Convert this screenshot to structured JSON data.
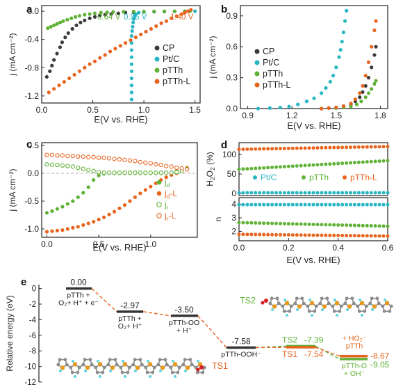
{
  "chart_data": [
    {
      "panel": "a",
      "type": "scatter",
      "xlabel": "E(V vs. RHE)",
      "ylabel": "j (mA cm⁻²)",
      "xlim": [
        0,
        1.55
      ],
      "ylim": [
        -1.3,
        0.08
      ],
      "xticks": [
        "0.0",
        "0.5",
        "1.0",
        "1.5"
      ],
      "yticks": [
        "0.0",
        "-0.4",
        "-0.8",
        "-1.2"
      ],
      "legend_position": "right",
      "annotations": [
        {
          "text": "0.64 V",
          "color": "#5fb236"
        },
        {
          "text": "0.96 V",
          "color": "#27b6c2"
        },
        {
          "text": "1.40 V",
          "color": "#e8641e"
        }
      ],
      "series": [
        {
          "name": "CP",
          "color": "#3a3a3a",
          "x": [
            0.05,
            0.08,
            0.1,
            0.12,
            0.15,
            0.18,
            0.2,
            0.23,
            0.26,
            0.3,
            0.34,
            0.38,
            0.42,
            0.47,
            0.52,
            0.57,
            0.62,
            0.68,
            0.75,
            0.82,
            0.9,
            1.0,
            1.1,
            1.2,
            1.3,
            1.4,
            1.45
          ],
          "y": [
            -0.93,
            -0.85,
            -0.77,
            -0.69,
            -0.6,
            -0.51,
            -0.44,
            -0.37,
            -0.31,
            -0.25,
            -0.2,
            -0.16,
            -0.13,
            -0.1,
            -0.08,
            -0.06,
            -0.05,
            -0.04,
            -0.03,
            -0.02,
            -0.015,
            -0.01,
            -0.007,
            -0.005,
            -0.003,
            -0.002,
            -0.001
          ]
        },
        {
          "name": "Pt/C",
          "color": "#27b6c2",
          "x": [
            0.88,
            0.88,
            0.88,
            0.88,
            0.88,
            0.88,
            0.88,
            0.88,
            0.88,
            0.88,
            0.885,
            0.89,
            0.895,
            0.9,
            0.91,
            0.92,
            0.95,
            1.0,
            1.1,
            1.2,
            1.3,
            1.4,
            1.5
          ],
          "y": [
            -1.25,
            -1.15,
            -1.05,
            -0.95,
            -0.85,
            -0.75,
            -0.65,
            -0.55,
            -0.45,
            -0.35,
            -0.28,
            -0.22,
            -0.16,
            -0.11,
            -0.07,
            -0.04,
            -0.02,
            -0.01,
            -0.005,
            -0.003,
            -0.002,
            -0.001,
            0.0
          ]
        },
        {
          "name": "pTTh",
          "color": "#5fb236",
          "x": [
            0.06,
            0.09,
            0.12,
            0.15,
            0.18,
            0.21,
            0.25,
            0.29,
            0.33,
            0.37,
            0.42,
            0.47,
            0.52,
            0.58,
            0.64,
            0.7,
            0.8,
            0.9,
            1.0,
            1.1,
            1.2,
            1.3,
            1.4,
            1.45
          ],
          "y": [
            -0.24,
            -0.22,
            -0.2,
            -0.18,
            -0.16,
            -0.14,
            -0.12,
            -0.1,
            -0.08,
            -0.065,
            -0.05,
            -0.04,
            -0.03,
            -0.02,
            -0.015,
            -0.01,
            -0.007,
            -0.005,
            -0.003,
            -0.002,
            -0.001,
            0.0,
            0.0,
            0.0
          ]
        },
        {
          "name": "pTTh-L",
          "color": "#e8641e",
          "x": [
            0.07,
            0.12,
            0.17,
            0.22,
            0.27,
            0.32,
            0.37,
            0.42,
            0.47,
            0.52,
            0.57,
            0.62,
            0.67,
            0.72,
            0.77,
            0.82,
            0.87,
            0.92,
            0.97,
            1.02,
            1.07,
            1.12,
            1.17,
            1.22,
            1.27,
            1.32,
            1.37,
            1.4,
            1.43,
            1.46
          ],
          "y": [
            -1.15,
            -1.1,
            -1.05,
            -1.0,
            -0.95,
            -0.9,
            -0.85,
            -0.8,
            -0.75,
            -0.71,
            -0.66,
            -0.62,
            -0.57,
            -0.53,
            -0.49,
            -0.45,
            -0.41,
            -0.37,
            -0.33,
            -0.29,
            -0.25,
            -0.21,
            -0.17,
            -0.14,
            -0.1,
            -0.07,
            -0.04,
            -0.02,
            0.0,
            0.02
          ]
        }
      ]
    },
    {
      "panel": "b",
      "type": "scatter",
      "xlabel": "E(V vs. RHE)",
      "ylabel": "j (mA cm⁻²)",
      "xlim": [
        0.85,
        1.85
      ],
      "ylim": [
        0,
        1.0
      ],
      "xticks": [
        "0.9",
        "1.2",
        "1.5",
        "1.8"
      ],
      "yticks": [
        "0.0",
        "0.3",
        "0.6",
        "0.9"
      ],
      "legend_position": "left",
      "series": [
        {
          "name": "CP",
          "color": "#3a3a3a",
          "x": [
            1.4,
            1.45,
            1.5,
            1.55,
            1.6,
            1.63,
            1.66,
            1.68,
            1.7,
            1.72,
            1.74,
            1.76,
            1.77
          ],
          "y": [
            0.0,
            0.005,
            0.01,
            0.02,
            0.04,
            0.07,
            0.11,
            0.16,
            0.22,
            0.3,
            0.4,
            0.52,
            0.6
          ]
        },
        {
          "name": "Pt/C",
          "color": "#27b6c2",
          "x": [
            0.97,
            1.05,
            1.12,
            1.18,
            1.24,
            1.3,
            1.35,
            1.4,
            1.43,
            1.46,
            1.48,
            1.5,
            1.52,
            1.53,
            1.54,
            1.55,
            1.56,
            1.57
          ],
          "y": [
            0.0,
            0.005,
            0.01,
            0.02,
            0.04,
            0.07,
            0.1,
            0.15,
            0.2,
            0.26,
            0.32,
            0.4,
            0.5,
            0.57,
            0.65,
            0.74,
            0.85,
            0.95
          ]
        },
        {
          "name": "pTTh",
          "color": "#5fb236",
          "x": [
            1.4,
            1.5,
            1.55,
            1.6,
            1.64,
            1.67,
            1.7,
            1.72,
            1.74,
            1.76,
            1.77
          ],
          "y": [
            0.0,
            0.005,
            0.01,
            0.02,
            0.04,
            0.07,
            0.11,
            0.15,
            0.19,
            0.24,
            0.27
          ]
        },
        {
          "name": "pTTh-L",
          "color": "#e8641e",
          "x": [
            1.4,
            1.45,
            1.5,
            1.55,
            1.6,
            1.63,
            1.66,
            1.68,
            1.7,
            1.72,
            1.74,
            1.76,
            1.77
          ],
          "y": [
            0.0,
            0.005,
            0.01,
            0.025,
            0.05,
            0.09,
            0.15,
            0.22,
            0.32,
            0.45,
            0.6,
            0.76,
            0.85
          ]
        }
      ]
    },
    {
      "panel": "c",
      "type": "scatter",
      "xlabel": "E(V vs. RHE)",
      "ylabel": "j (mA cm⁻²)",
      "xlim": [
        -0.05,
        1.45
      ],
      "ylim": [
        -1.15,
        0.55
      ],
      "xticks": [
        "0.0",
        "0.5",
        "1.0"
      ],
      "yticks": [
        "0.5",
        "0.0",
        "-0.5",
        "-1.0"
      ],
      "legend_position": "right",
      "series": [
        {
          "name": "j_d",
          "label_main": "j",
          "label_sub": "d",
          "color": "#5fb236",
          "filled": true,
          "x": [
            0.0,
            0.05,
            0.1,
            0.15,
            0.2,
            0.25,
            0.3,
            0.35,
            0.4,
            0.45,
            0.5,
            0.55,
            0.6,
            0.65,
            0.7,
            0.75,
            0.8,
            0.85,
            0.9,
            0.95,
            1.0,
            1.05,
            1.1,
            1.15,
            1.2,
            1.25,
            1.3,
            1.35
          ],
          "y": [
            -0.71,
            -0.68,
            -0.64,
            -0.6,
            -0.55,
            -0.5,
            -0.43,
            -0.35,
            -0.25,
            -0.12,
            -0.04,
            -0.01,
            0.0,
            0.0,
            0.0,
            0.0,
            0.0,
            0.0,
            0.0,
            0.0,
            0.0,
            0.0,
            0.0,
            0.01,
            0.02,
            0.04,
            0.06,
            0.09
          ]
        },
        {
          "name": "j_d-L",
          "label_main": "j",
          "label_sub": "d",
          "label_suffix": "-L",
          "color": "#e8641e",
          "filled": true,
          "x": [
            0.0,
            0.05,
            0.1,
            0.15,
            0.2,
            0.25,
            0.3,
            0.35,
            0.4,
            0.45,
            0.5,
            0.55,
            0.6,
            0.65,
            0.7,
            0.75,
            0.8,
            0.85,
            0.9,
            0.95,
            1.0,
            1.05,
            1.1,
            1.15,
            1.2,
            1.25,
            1.3,
            1.35
          ],
          "y": [
            -1.05,
            -1.04,
            -1.03,
            -1.02,
            -1.0,
            -0.98,
            -0.96,
            -0.93,
            -0.9,
            -0.87,
            -0.83,
            -0.79,
            -0.74,
            -0.69,
            -0.63,
            -0.57,
            -0.5,
            -0.43,
            -0.36,
            -0.3,
            -0.24,
            -0.18,
            -0.12,
            -0.07,
            -0.03,
            0.0,
            0.05,
            0.1
          ]
        },
        {
          "name": "j_r",
          "label_main": "j",
          "label_sub": "r",
          "color": "#5fb236",
          "filled": false,
          "x": [
            0.0,
            0.05,
            0.1,
            0.15,
            0.2,
            0.25,
            0.3,
            0.35,
            0.4,
            0.45,
            0.5,
            0.55,
            0.6,
            0.65,
            0.7,
            0.75,
            0.8,
            0.85,
            0.9,
            0.95,
            1.0,
            1.05,
            1.1,
            1.15,
            1.2,
            1.25,
            1.3,
            1.35
          ],
          "y": [
            0.16,
            0.155,
            0.15,
            0.14,
            0.13,
            0.12,
            0.1,
            0.08,
            0.06,
            0.04,
            0.02,
            0.01,
            0.01,
            0.01,
            0.01,
            0.01,
            0.01,
            0.01,
            0.01,
            0.01,
            0.01,
            0.01,
            0.01,
            0.01,
            0.01,
            0.02,
            0.04,
            0.08
          ]
        },
        {
          "name": "j_r-L",
          "label_main": "j",
          "label_sub": "r",
          "label_suffix": "-L",
          "color": "#e8641e",
          "filled": false,
          "x": [
            0.0,
            0.05,
            0.1,
            0.15,
            0.2,
            0.25,
            0.3,
            0.35,
            0.4,
            0.45,
            0.5,
            0.55,
            0.6,
            0.65,
            0.7,
            0.75,
            0.8,
            0.85,
            0.9,
            0.95,
            1.0,
            1.05,
            1.1,
            1.15,
            1.2,
            1.25,
            1.3,
            1.35
          ],
          "y": [
            0.33,
            0.33,
            0.32,
            0.32,
            0.31,
            0.31,
            0.3,
            0.3,
            0.29,
            0.29,
            0.28,
            0.28,
            0.27,
            0.26,
            0.25,
            0.24,
            0.23,
            0.22,
            0.2,
            0.19,
            0.18,
            0.16,
            0.15,
            0.13,
            0.12,
            0.1,
            0.09,
            0.07
          ]
        }
      ]
    },
    {
      "panel": "d_top",
      "type": "scatter",
      "ylabel_main": "H",
      "ylabel_sub": "2",
      "ylabel_rest": "O",
      "ylabel_sub2": "2",
      "ylabel_end": " (%)",
      "xlim": [
        0,
        0.6
      ],
      "ylim": [
        -5,
        130
      ],
      "yticks": [
        "100",
        "50",
        "0"
      ],
      "legend_position": "inside-middle",
      "series": [
        {
          "name": "Pt/C",
          "color": "#27b6c2",
          "points": 37,
          "y_start": 2,
          "y_end": 2
        },
        {
          "name": "pTTh",
          "color": "#5fb236",
          "points": 37,
          "y_start": 62,
          "y_end": 84
        },
        {
          "name": "pTTh-L",
          "color": "#e8641e",
          "points": 37,
          "y_start": 113,
          "y_end": 120
        }
      ]
    },
    {
      "panel": "d_bottom",
      "type": "scatter",
      "xlabel": "E(V vs. RHE)",
      "ylabel": "n",
      "xlim": [
        0,
        0.6
      ],
      "ylim": [
        1.3,
        4.5
      ],
      "xticks": [
        "0.0",
        "0.2",
        "0.4",
        "0.6"
      ],
      "yticks": [
        "4",
        "3",
        "2"
      ],
      "series": [
        {
          "name": "Pt/C",
          "color": "#27b6c2",
          "points": 37,
          "y_start": 3.98,
          "y_end": 3.98
        },
        {
          "name": "pTTh",
          "color": "#5fb236",
          "points": 37,
          "y_start": 2.65,
          "y_end": 2.38
        },
        {
          "name": "pTTh-L",
          "color": "#e8641e",
          "points": 37,
          "y_start": 1.78,
          "y_end": 1.65
        }
      ]
    },
    {
      "panel": "e",
      "type": "energy-diagram",
      "ylabel": "Relative energy (eV)",
      "ylim": [
        -12,
        0.5
      ],
      "yticks": [
        "0",
        "-2",
        "-4",
        "-6",
        "-8",
        "-10",
        "-12"
      ],
      "states": [
        {
          "value": 0.0,
          "value_label": "0.00",
          "label_lines": [
            "pTTh +",
            "O₂+ H⁺ + e⁻"
          ],
          "color": "#333333"
        },
        {
          "value": -2.97,
          "value_label": "-2.97",
          "label_lines": [
            "pTTh +",
            "O₂+ H⁺"
          ],
          "color": "#333333"
        },
        {
          "value": -3.5,
          "value_label": "-3.50",
          "label_lines": [
            "pTTh-OO",
            "+ H⁺"
          ],
          "color": "#333333"
        },
        {
          "value": -7.58,
          "value_label": "-7.58",
          "label_lines": [
            "pTTh-OOH⁻"
          ],
          "color": "#333333"
        },
        {
          "value": -7.39,
          "value_label": "-7.39",
          "label_lines": [],
          "name": "TS2",
          "color": "#5fb236"
        },
        {
          "value": -7.54,
          "value_label": "-7.54",
          "label_lines": [],
          "name": "TS1",
          "color": "#e8641e"
        },
        {
          "value": -8.67,
          "value_label": "-8.67",
          "label_lines": [
            "+ HO₂⁻",
            "pTTh"
          ],
          "color": "#e8641e"
        },
        {
          "value": -9.05,
          "value_label": "-9.05",
          "label_lines": [
            "pTTh-O",
            "+ OH⁻"
          ],
          "color": "#5fb236"
        }
      ],
      "structure_labels": [
        "TS2",
        "TS1"
      ]
    }
  ],
  "panel_letters": [
    "a",
    "b",
    "c",
    "d",
    "e"
  ],
  "colors": {
    "CP": "#3a3a3a",
    "PtC": "#27b6c2",
    "pTTh": "#5fb236",
    "pTThL": "#e8641e"
  }
}
